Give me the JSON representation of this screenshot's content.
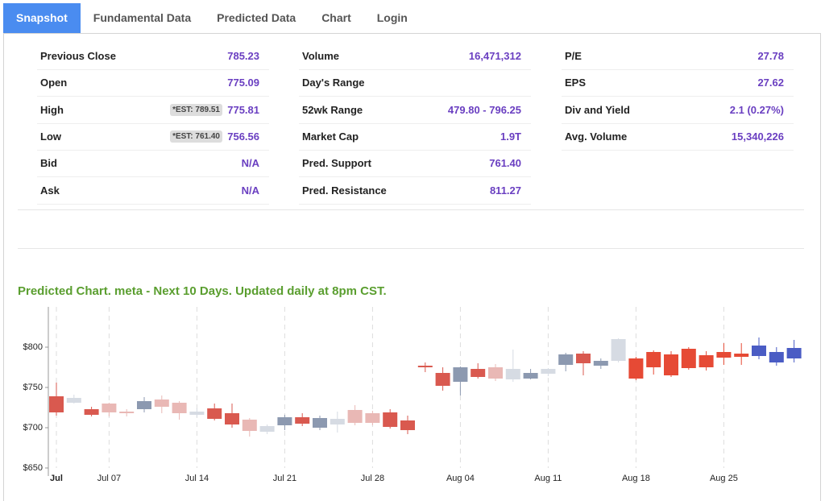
{
  "tabs": [
    "Snapshot",
    "Fundamental Data",
    "Predicted Data",
    "Chart",
    "Login"
  ],
  "stats": [
    [
      {
        "label": "Previous Close",
        "value": "785.23"
      },
      {
        "label": "Open",
        "value": "775.09"
      },
      {
        "label": "High",
        "est": "*EST: 789.51",
        "value": "775.81"
      },
      {
        "label": "Low",
        "est": "*EST: 761.40",
        "value": "756.56"
      },
      {
        "label": "Bid",
        "value": "N/A"
      },
      {
        "label": "Ask",
        "value": "N/A"
      }
    ],
    [
      {
        "label": "Volume",
        "value": "16,471,312"
      },
      {
        "label": "Day's Range"
      },
      {
        "label": "52wk Range",
        "value": "479.80 - 796.25"
      },
      {
        "label": "Market Cap",
        "value": "1.9T"
      },
      {
        "label": "Pred. Support",
        "value": "761.40"
      },
      {
        "label": "Pred. Resistance",
        "value": "811.27"
      }
    ],
    [
      {
        "label": "P/E",
        "value": "27.78"
      },
      {
        "label": "EPS",
        "value": "27.62"
      },
      {
        "label": "Div and Yield",
        "value": "2.1 (0.27%)"
      },
      {
        "label": "Avg. Volume",
        "value": "15,340,226"
      }
    ]
  ],
  "chart_data": {
    "type": "candlestick",
    "title": "Predicted Chart. meta - Next 10 Days. Updated daily at 8pm CST.",
    "categories": [
      "Jul",
      null,
      null,
      "Jul 07",
      null,
      null,
      null,
      null,
      "Jul 14",
      null,
      null,
      null,
      null,
      "Jul 21",
      null,
      null,
      null,
      null,
      "Jul 28",
      null,
      null,
      null,
      null,
      "Aug 04",
      null,
      null,
      null,
      null,
      "Aug 11",
      null,
      null,
      null,
      null,
      "Aug 18",
      null,
      null,
      null,
      null,
      "Aug 25",
      null,
      null,
      null,
      null
    ],
    "open": [
      739,
      731,
      723,
      730,
      720,
      723,
      735,
      731,
      716,
      724,
      718,
      710,
      695,
      703,
      713,
      700,
      704,
      722,
      718,
      719,
      709,
      777,
      768,
      757,
      773,
      775,
      760,
      761,
      767,
      778,
      792,
      777,
      783,
      786,
      775,
      791,
      774,
      790,
      787,
      788,
      789,
      794,
      786
    ],
    "high": [
      756,
      741,
      726,
      731,
      723,
      738,
      740,
      733,
      724,
      730,
      730,
      712,
      704,
      716,
      718,
      715,
      720,
      728,
      721,
      723,
      715,
      781,
      775,
      776,
      780,
      779,
      797,
      773,
      774,
      793,
      795,
      786,
      811,
      788,
      796,
      795,
      800,
      795,
      805,
      805,
      812,
      800,
      809
    ],
    "low": [
      715,
      730,
      714,
      714,
      714,
      719,
      718,
      710,
      713,
      709,
      700,
      689,
      692,
      697,
      702,
      697,
      694,
      703,
      703,
      699,
      692,
      769,
      746,
      740,
      761,
      758,
      757,
      760,
      764,
      770,
      765,
      773,
      781,
      759,
      766,
      763,
      772,
      771,
      778,
      778,
      785,
      777,
      781
    ],
    "close": [
      719,
      737,
      716,
      719,
      718,
      733,
      726,
      718,
      720,
      711,
      704,
      696,
      702,
      713,
      705,
      712,
      711,
      706,
      706,
      701,
      697,
      775,
      752,
      775,
      763,
      761,
      773,
      768,
      773,
      791,
      780,
      783,
      810,
      761,
      794,
      765,
      798,
      775,
      794,
      792,
      802,
      781,
      799
    ],
    "colors": [
      "#d9594f",
      "#d6dbe3",
      "#d9594f",
      "#e9b8b5",
      "#e9b8b5",
      "#8c99b0",
      "#e9b8b5",
      "#e9b8b5",
      "#d6dbe3",
      "#d9594f",
      "#d9594f",
      "#e9b8b5",
      "#d6dbe3",
      "#8c99b0",
      "#d9594f",
      "#8c99b0",
      "#d6dbe3",
      "#e9b8b5",
      "#e9b8b5",
      "#d9594f",
      "#d9594f",
      "#d9594f",
      "#d9594f",
      "#8c99b0",
      "#d9594f",
      "#e9b8b5",
      "#d6dbe3",
      "#8c99b0",
      "#d6dbe3",
      "#8c99b0",
      "#d9594f",
      "#8c99b0",
      "#d6dbe3",
      "#e64a35",
      "#e64a35",
      "#e64a35",
      "#e64a35",
      "#e64a35",
      "#e64a35",
      "#e64a35",
      "#4a5cc4",
      "#4a5cc4",
      "#4a5cc4"
    ],
    "ylim": [
      650,
      850
    ],
    "yticks": [
      {
        "value": 650,
        "label": "$650"
      },
      {
        "value": 700,
        "label": "$700"
      },
      {
        "value": 750,
        "label": "$750"
      },
      {
        "value": 800,
        "label": "$800"
      }
    ],
    "grid": true
  }
}
